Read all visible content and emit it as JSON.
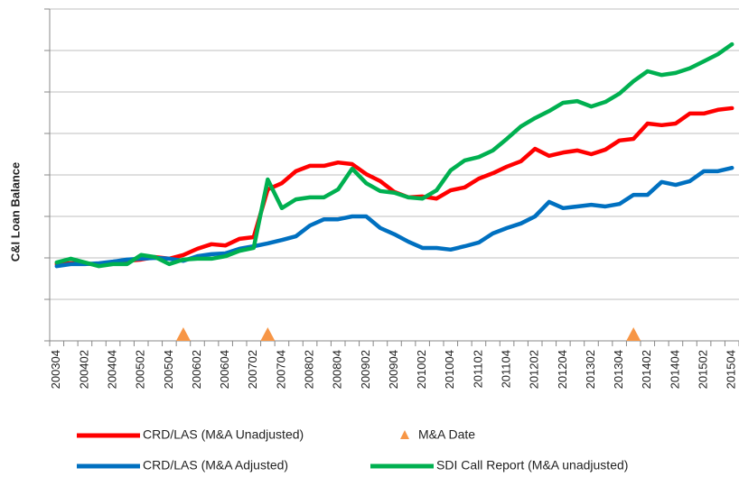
{
  "chart_data": {
    "type": "line",
    "y_label": "C&I Loan Balance",
    "categories": [
      "200304",
      null,
      "200402",
      null,
      "200404",
      null,
      "200502",
      null,
      "200504",
      null,
      "200602",
      null,
      "200604",
      null,
      "200702",
      null,
      "200704",
      null,
      "200802",
      null,
      "200804",
      null,
      "200902",
      null,
      "200904",
      null,
      "201002",
      null,
      "201004",
      null,
      "201102",
      null,
      "201104",
      null,
      "201202",
      null,
      "201204",
      null,
      "201302",
      null,
      "201304",
      null,
      "201402",
      null,
      "201404",
      null,
      "201502",
      null,
      "201504"
    ],
    "ylim": [
      0,
      8
    ],
    "yticks": [
      0,
      1,
      2,
      3,
      4,
      5,
      6,
      7,
      8
    ],
    "grid": true,
    "series": [
      {
        "name": "CRD/LAS (M&A Unadjusted)",
        "color": "#ff0000",
        "values": [
          1.85,
          1.87,
          1.87,
          1.83,
          1.87,
          1.93,
          1.96,
          2.02,
          1.98,
          2.07,
          2.22,
          2.33,
          2.3,
          2.46,
          2.5,
          3.65,
          3.8,
          4.09,
          4.22,
          4.22,
          4.3,
          4.26,
          4.02,
          3.85,
          3.59,
          3.46,
          3.48,
          3.43,
          3.63,
          3.7,
          3.91,
          4.04,
          4.2,
          4.33,
          4.63,
          4.46,
          4.54,
          4.59,
          4.5,
          4.61,
          4.83,
          4.87,
          5.24,
          5.2,
          5.24,
          5.48,
          5.48,
          5.57,
          5.61
        ]
      },
      {
        "name": "M&A Date",
        "color": "#f79646",
        "marker": "triangle",
        "values": [
          null,
          null,
          null,
          null,
          null,
          null,
          null,
          null,
          null,
          0,
          null,
          null,
          null,
          null,
          null,
          0,
          null,
          null,
          null,
          null,
          null,
          null,
          null,
          null,
          null,
          null,
          null,
          null,
          null,
          null,
          null,
          null,
          null,
          null,
          null,
          null,
          null,
          null,
          null,
          null,
          null,
          0,
          null,
          null,
          null,
          null,
          null,
          null,
          null
        ]
      },
      {
        "name": "CRD/LAS (M&A Adjusted)",
        "color": "#0070c0",
        "values": [
          1.8,
          1.85,
          1.85,
          1.87,
          1.91,
          1.96,
          1.98,
          2.0,
          1.98,
          1.93,
          2.04,
          2.09,
          2.11,
          2.22,
          2.28,
          2.35,
          2.43,
          2.52,
          2.78,
          2.93,
          2.93,
          3.0,
          3.0,
          2.72,
          2.57,
          2.39,
          2.24,
          2.24,
          2.2,
          2.28,
          2.37,
          2.59,
          2.72,
          2.83,
          3.0,
          3.35,
          3.2,
          3.24,
          3.28,
          3.24,
          3.3,
          3.52,
          3.52,
          3.83,
          3.76,
          3.85,
          4.09,
          4.09,
          4.17
        ]
      },
      {
        "name": "SDI Call Report (M&A unadjusted)",
        "color": "#00b050",
        "values": [
          1.89,
          1.98,
          1.89,
          1.8,
          1.85,
          1.85,
          2.07,
          2.02,
          1.85,
          1.96,
          1.98,
          1.98,
          2.04,
          2.17,
          2.24,
          3.89,
          3.2,
          3.41,
          3.46,
          3.46,
          3.65,
          4.15,
          3.8,
          3.61,
          3.57,
          3.46,
          3.43,
          3.63,
          4.11,
          4.35,
          4.43,
          4.59,
          4.87,
          5.17,
          5.37,
          5.54,
          5.74,
          5.78,
          5.65,
          5.76,
          5.96,
          6.26,
          6.5,
          6.41,
          6.46,
          6.57,
          6.74,
          6.91,
          7.15
        ]
      }
    ]
  }
}
